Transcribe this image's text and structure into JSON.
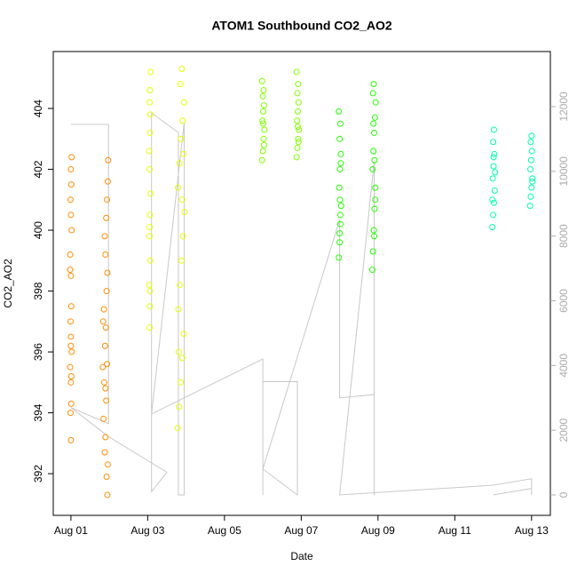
{
  "chart_data": {
    "type": "scatter",
    "title": "ATOM1 Southbound CO2_AO2",
    "x_label": "Date",
    "y_label": "CO2_AO2",
    "xlim": [
      0.54,
      13.49
    ],
    "ylim": [
      390.63,
      405.87
    ],
    "y2lim": [
      -632,
      13702
    ],
    "xticks": [
      {
        "value": 1,
        "label": "Aug 01"
      },
      {
        "value": 3,
        "label": "Aug 03"
      },
      {
        "value": 5,
        "label": "Aug 05"
      },
      {
        "value": 7,
        "label": "Aug 07"
      },
      {
        "value": 9,
        "label": "Aug 09"
      },
      {
        "value": 11,
        "label": "Aug 11"
      },
      {
        "value": 13,
        "label": "Aug 13"
      }
    ],
    "yticks": [
      392,
      394,
      396,
      398,
      400,
      402,
      404
    ],
    "y2ticks": [
      0,
      2000,
      4000,
      6000,
      8000,
      10000,
      12000
    ],
    "series": [
      {
        "color": "#ff8c00",
        "x": [
          1.0,
          0.99,
          1.01,
          1.0,
          0.98,
          1.02,
          1.0,
          0.99,
          1.01,
          1.0,
          0.98,
          1.02,
          1.0,
          0.99,
          1.01,
          1.0,
          1.02,
          0.98,
          1.0,
          1.01
        ],
        "values": [
          393.1,
          394.0,
          394.3,
          395.0,
          395.5,
          396.0,
          396.5,
          397.0,
          397.5,
          398.5,
          398.7,
          400.0,
          400.5,
          401.0,
          401.5,
          402.0,
          402.4,
          399.2,
          396.2,
          395.2
        ]
      },
      {
        "color": "#ff8c00",
        "x": [
          1.95,
          1.93,
          1.96,
          1.88,
          1.9,
          1.85,
          1.92,
          1.87,
          1.94,
          1.89,
          1.91,
          1.86,
          1.93,
          1.95,
          1.9,
          1.88,
          1.92,
          1.94,
          1.96,
          1.97,
          1.84,
          1.83,
          1.9
        ],
        "values": [
          391.3,
          391.9,
          392.3,
          392.7,
          393.2,
          393.8,
          394.4,
          395.0,
          395.6,
          396.2,
          396.8,
          397.4,
          398.0,
          398.6,
          399.2,
          399.8,
          400.4,
          401.0,
          401.6,
          402.3,
          397.0,
          395.5,
          394.8
        ]
      },
      {
        "color": "#e6ff00",
        "x": [
          3.05,
          3.06,
          3.04,
          3.07,
          3.05,
          3.06,
          3.08,
          3.05,
          3.04,
          3.06,
          3.07,
          3.05,
          3.06,
          3.08,
          3.05,
          3.06
        ],
        "values": [
          396.8,
          397.5,
          398.2,
          399.0,
          399.8,
          400.5,
          401.2,
          402.0,
          402.6,
          403.2,
          403.8,
          404.2,
          404.6,
          405.2,
          400.1,
          398.0
        ]
      },
      {
        "color": "#e6ff00",
        "x": [
          3.78,
          3.82,
          3.86,
          3.9,
          3.94,
          3.8,
          3.84,
          3.88,
          3.92,
          3.96,
          3.79,
          3.83,
          3.87,
          3.91,
          3.95,
          3.85,
          3.89,
          3.93,
          3.81,
          3.9
        ],
        "values": [
          393.5,
          394.2,
          395.0,
          395.8,
          396.6,
          397.4,
          398.2,
          399.0,
          399.8,
          400.6,
          401.4,
          402.2,
          403.0,
          403.6,
          404.2,
          404.8,
          405.3,
          402.5,
          396.0,
          401.0
        ]
      },
      {
        "color": "#80ff00",
        "x": [
          5.98,
          6.0,
          6.02,
          6.04,
          5.99,
          6.01,
          6.03,
          6.0,
          6.02,
          5.98,
          6.01,
          6.03
        ],
        "values": [
          402.3,
          402.6,
          403.0,
          403.3,
          403.6,
          403.9,
          404.1,
          404.4,
          404.6,
          404.9,
          403.5,
          402.8
        ]
      },
      {
        "color": "#80ff00",
        "x": [
          6.88,
          6.9,
          6.92,
          6.94,
          6.89,
          6.91,
          6.93,
          6.9,
          6.92,
          6.88,
          6.91,
          6.93
        ],
        "values": [
          402.4,
          402.7,
          403.0,
          403.3,
          403.6,
          403.9,
          404.2,
          404.5,
          404.8,
          405.2,
          403.4,
          402.9
        ]
      },
      {
        "color": "#22ff00",
        "x": [
          7.98,
          8.0,
          8.02,
          8.04,
          7.99,
          8.01,
          8.03,
          8.0,
          8.02,
          7.98,
          8.01,
          8.03,
          8.0,
          8.02
        ],
        "values": [
          399.1,
          399.6,
          400.2,
          400.8,
          401.4,
          402.0,
          402.5,
          403.0,
          403.5,
          403.9,
          401.0,
          402.2,
          399.9,
          400.5
        ]
      },
      {
        "color": "#22ff00",
        "x": [
          8.85,
          8.87,
          8.89,
          8.91,
          8.93,
          8.86,
          8.88,
          8.9,
          8.92,
          8.94,
          8.87,
          8.89,
          8.91,
          8.93,
          8.9,
          8.88
        ],
        "values": [
          398.7,
          399.3,
          400.0,
          400.7,
          401.4,
          402.0,
          402.6,
          403.2,
          403.7,
          404.2,
          404.5,
          404.8,
          402.3,
          401.0,
          399.8,
          403.5
        ]
      },
      {
        "color": "#00ffaa",
        "x": [
          11.98,
          12.0,
          12.02,
          12.04,
          11.99,
          12.01,
          12.03,
          12.0,
          12.02,
          11.98,
          12.05,
          12.01
        ],
        "values": [
          400.1,
          400.5,
          400.9,
          401.3,
          401.7,
          402.1,
          402.5,
          402.9,
          403.3,
          401.0,
          401.9,
          402.4
        ]
      },
      {
        "color": "#00ffaa",
        "x": [
          12.96,
          12.98,
          13.0,
          13.02,
          12.97,
          12.99,
          13.01,
          12.98,
          13.0,
          13.02
        ],
        "values": [
          400.8,
          401.1,
          401.4,
          401.7,
          402.0,
          402.3,
          402.6,
          402.9,
          403.1,
          401.6
        ]
      },
      {
        "color": "#c8c8c8",
        "axis": "y2",
        "line": true,
        "x": [
          1.0,
          1.98,
          1.98,
          1.0,
          1.98,
          3.5,
          3.1,
          3.1,
          3.8,
          3.8,
          3.95,
          3.95,
          3.1,
          6.0,
          6.0,
          6.0,
          6.9,
          6.9,
          6.0,
          8.0,
          8.0,
          8.9,
          8.9,
          8.9,
          8.0,
          12.0,
          13.0,
          13.0,
          13.0,
          12.0
        ],
        "values": [
          11450,
          11450,
          2200,
          2700,
          1800,
          700,
          100,
          11800,
          11200,
          0,
          0,
          11500,
          2500,
          4200,
          0,
          3500,
          3500,
          0,
          800,
          8500,
          3000,
          3100,
          0,
          10300,
          0,
          300,
          500,
          0,
          200,
          0
        ]
      }
    ]
  }
}
